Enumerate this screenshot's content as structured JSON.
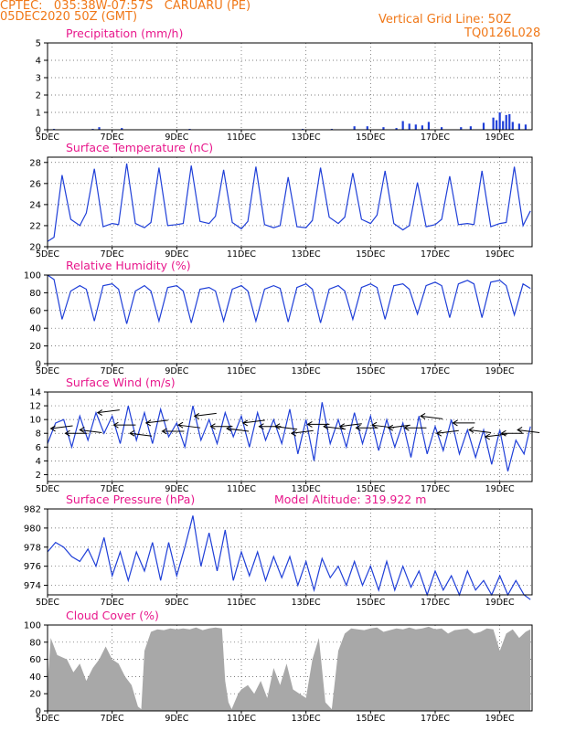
{
  "header": {
    "line1": "CPTEC:   035:38W-07:57S   CARUARU (PE)",
    "line2": "05DEC2020 50Z (GMT)",
    "grid_note": "Vertical Grid Line: 50Z",
    "code": "TQ0126L028"
  },
  "colors": {
    "header": "#f07818",
    "title": "#e8188c",
    "series": "#1f3fd8",
    "cloud": "#a8a8a8",
    "wind_arrow": "#000000"
  },
  "x_ticks": [
    "5DEC",
    "7DEC",
    "9DEC",
    "11DEC",
    "13DEC",
    "15DEC",
    "17DEC",
    "19DEC"
  ],
  "chart_data": [
    {
      "type": "bar",
      "title": "Precipitation (mm/h)",
      "ylim": [
        0,
        5
      ],
      "yticks": [
        0,
        1,
        2,
        3,
        4,
        5
      ],
      "x": [
        5.2,
        6.4,
        6.6,
        7.3,
        9.4,
        12.9,
        13.8,
        14.5,
        14.9,
        15.4,
        15.8,
        16.0,
        16.2,
        16.4,
        16.6,
        16.8,
        17.2,
        17.8,
        18.1,
        18.5,
        18.8,
        18.9,
        19.0,
        19.1,
        19.2,
        19.3,
        19.4,
        19.6,
        19.8
      ],
      "values": [
        0.05,
        0.05,
        0.15,
        0.1,
        0.05,
        0.05,
        0.05,
        0.2,
        0.2,
        0.15,
        0.1,
        0.5,
        0.35,
        0.3,
        0.25,
        0.45,
        0.15,
        0.15,
        0.2,
        0.4,
        0.7,
        0.55,
        1.0,
        0.5,
        0.85,
        0.9,
        0.45,
        0.35,
        0.3
      ]
    },
    {
      "type": "line",
      "title": "Surface Temperature (nC)",
      "ylim": [
        20,
        28.5
      ],
      "yticks": [
        20,
        22,
        24,
        26,
        28
      ],
      "x": [
        5.0,
        5.2,
        5.45,
        5.72,
        6.0,
        6.2,
        6.45,
        6.72,
        7.0,
        7.2,
        7.45,
        7.72,
        8.0,
        8.2,
        8.45,
        8.72,
        9.0,
        9.2,
        9.45,
        9.72,
        10.0,
        10.2,
        10.45,
        10.72,
        11.0,
        11.2,
        11.45,
        11.72,
        12.0,
        12.2,
        12.45,
        12.72,
        13.0,
        13.2,
        13.45,
        13.72,
        14.0,
        14.2,
        14.45,
        14.72,
        15.0,
        15.2,
        15.45,
        15.72,
        16.0,
        16.2,
        16.45,
        16.72,
        17.0,
        17.2,
        17.45,
        17.72,
        18.0,
        18.2,
        18.45,
        18.72,
        19.0,
        19.2,
        19.45,
        19.72,
        19.95
      ],
      "series": [
        {
          "values": [
            20.5,
            20.9,
            26.8,
            22.6,
            22.0,
            23.2,
            27.4,
            21.9,
            22.2,
            22.1,
            27.9,
            22.2,
            21.8,
            22.3,
            27.5,
            22.0,
            22.1,
            22.2,
            27.7,
            22.4,
            22.2,
            22.9,
            27.3,
            22.3,
            21.7,
            22.4,
            27.6,
            22.1,
            21.8,
            22.0,
            26.6,
            21.9,
            21.8,
            22.5,
            27.5,
            22.8,
            22.2,
            22.8,
            27.0,
            22.6,
            22.2,
            23.0,
            27.2,
            22.2,
            21.6,
            22.0,
            26.1,
            21.9,
            22.1,
            22.6,
            26.7,
            22.1,
            22.2,
            22.1,
            27.2,
            21.9,
            22.2,
            22.3,
            27.6,
            22.0,
            23.4
          ]
        }
      ]
    },
    {
      "type": "line",
      "title": "Relative Humidity (%)",
      "ylim": [
        0,
        100
      ],
      "yticks": [
        0,
        20,
        40,
        60,
        80,
        100
      ],
      "x": [
        5.0,
        5.2,
        5.45,
        5.72,
        6.0,
        6.2,
        6.45,
        6.72,
        7.0,
        7.2,
        7.45,
        7.72,
        8.0,
        8.2,
        8.45,
        8.72,
        9.0,
        9.2,
        9.45,
        9.72,
        10.0,
        10.2,
        10.45,
        10.72,
        11.0,
        11.2,
        11.45,
        11.72,
        12.0,
        12.2,
        12.45,
        12.72,
        13.0,
        13.2,
        13.45,
        13.72,
        14.0,
        14.2,
        14.45,
        14.72,
        15.0,
        15.2,
        15.45,
        15.72,
        16.0,
        16.2,
        16.45,
        16.72,
        17.0,
        17.2,
        17.45,
        17.72,
        18.0,
        18.2,
        18.45,
        18.72,
        19.0,
        19.2,
        19.45,
        19.72,
        19.95
      ],
      "series": [
        {
          "values": [
            100,
            95,
            50,
            82,
            88,
            84,
            48,
            88,
            90,
            84,
            45,
            82,
            88,
            82,
            48,
            86,
            88,
            82,
            46,
            84,
            86,
            82,
            48,
            84,
            88,
            82,
            48,
            84,
            88,
            85,
            47,
            86,
            90,
            84,
            46,
            84,
            88,
            82,
            50,
            86,
            90,
            86,
            50,
            88,
            90,
            84,
            56,
            88,
            92,
            88,
            52,
            90,
            94,
            90,
            52,
            92,
            94,
            88,
            55,
            90,
            85
          ]
        }
      ]
    },
    {
      "type": "line",
      "title": "Surface Wind (m/s)",
      "ylim": [
        1,
        14
      ],
      "yticks": [
        2,
        4,
        6,
        8,
        10,
        12,
        14
      ],
      "x": [
        5.0,
        5.25,
        5.5,
        5.75,
        6.0,
        6.25,
        6.5,
        6.75,
        7.0,
        7.25,
        7.5,
        7.75,
        8.0,
        8.25,
        8.5,
        8.75,
        9.0,
        9.25,
        9.5,
        9.75,
        10.0,
        10.25,
        10.5,
        10.75,
        11.0,
        11.25,
        11.5,
        11.75,
        12.0,
        12.25,
        12.5,
        12.75,
        13.0,
        13.25,
        13.5,
        13.75,
        14.0,
        14.25,
        14.5,
        14.75,
        15.0,
        15.25,
        15.5,
        15.75,
        16.0,
        16.25,
        16.5,
        16.75,
        17.0,
        17.25,
        17.5,
        17.75,
        18.0,
        18.25,
        18.5,
        18.75,
        19.0,
        19.25,
        19.5,
        19.75,
        19.95
      ],
      "series": [
        {
          "values": [
            6.5,
            9.5,
            10.0,
            6.0,
            10.5,
            7.0,
            11.0,
            8.0,
            10.5,
            6.5,
            12.0,
            7.0,
            11.0,
            6.5,
            11.5,
            7.5,
            9.5,
            6.0,
            12.0,
            7.0,
            10.0,
            6.5,
            11.0,
            7.5,
            10.5,
            6.0,
            11.0,
            7.0,
            10.0,
            6.5,
            11.5,
            5.0,
            10.0,
            4.0,
            12.5,
            6.5,
            10.0,
            6.0,
            11.0,
            6.5,
            10.5,
            5.5,
            10.0,
            6.0,
            9.5,
            4.5,
            10.5,
            5.0,
            9.0,
            5.5,
            10.0,
            5.0,
            8.5,
            4.5,
            8.5,
            3.5,
            8.5,
            2.5,
            7.0,
            5.0,
            9.0
          ]
        }
      ],
      "arrows": {
        "note": "wind direction vectors",
        "x": [
          5.1,
          5.55,
          6.0,
          6.55,
          7.05,
          7.55,
          8.05,
          8.55,
          9.05,
          9.55,
          10.05,
          10.55,
          11.05,
          11.55,
          12.05,
          12.55,
          13.05,
          13.55,
          14.05,
          14.55,
          15.05,
          15.55,
          16.05,
          16.55,
          17.05,
          17.55,
          18.05,
          18.55,
          19.05,
          19.55
        ],
        "y": [
          8.7,
          8.0,
          8.5,
          11.0,
          9.2,
          8.0,
          9.5,
          8.3,
          9.2,
          10.5,
          9.0,
          8.7,
          9.5,
          9.0,
          9.0,
          8.0,
          9.3,
          9.0,
          9.0,
          8.8,
          9.2,
          8.8,
          8.8,
          10.5,
          8.0,
          9.5,
          8.5,
          7.5,
          8.0,
          8.5
        ]
      }
    },
    {
      "type": "line",
      "title": "Surface Pressure (hPa)",
      "subtitle": "Model Altitude: 319.922 m",
      "ylim": [
        973,
        982
      ],
      "yticks": [
        974,
        976,
        978,
        980,
        982
      ],
      "x": [
        5.0,
        5.25,
        5.5,
        5.75,
        6.0,
        6.25,
        6.5,
        6.75,
        7.0,
        7.25,
        7.5,
        7.75,
        8.0,
        8.25,
        8.5,
        8.75,
        9.0,
        9.25,
        9.5,
        9.75,
        10.0,
        10.25,
        10.5,
        10.75,
        11.0,
        11.25,
        11.5,
        11.75,
        12.0,
        12.25,
        12.5,
        12.75,
        13.0,
        13.25,
        13.5,
        13.75,
        14.0,
        14.25,
        14.5,
        14.75,
        15.0,
        15.25,
        15.5,
        15.75,
        16.0,
        16.25,
        16.5,
        16.75,
        17.0,
        17.25,
        17.5,
        17.75,
        18.0,
        18.25,
        18.5,
        18.75,
        19.0,
        19.25,
        19.5,
        19.75,
        19.95
      ],
      "series": [
        {
          "values": [
            977.5,
            978.5,
            978.0,
            977.0,
            976.5,
            977.8,
            976.0,
            979.0,
            975.0,
            977.5,
            974.5,
            977.5,
            975.5,
            978.5,
            974.5,
            978.5,
            975.0,
            978.0,
            981.3,
            976.0,
            979.5,
            975.5,
            979.8,
            974.5,
            977.5,
            975.0,
            977.5,
            974.5,
            977.0,
            974.8,
            977.0,
            974.0,
            976.5,
            973.5,
            976.8,
            974.8,
            976.0,
            974.0,
            976.5,
            974.0,
            976.0,
            973.5,
            976.5,
            973.5,
            976.0,
            973.8,
            975.5,
            973.0,
            975.5,
            973.5,
            975.0,
            973.0,
            975.5,
            973.5,
            974.5,
            973.0,
            975.0,
            973.0,
            974.5,
            973.0,
            972.5
          ]
        }
      ]
    },
    {
      "type": "area",
      "title": "Cloud Cover (%)",
      "ylim": [
        0,
        100
      ],
      "yticks": [
        0,
        20,
        40,
        60,
        80,
        100
      ],
      "x": [
        5.0,
        5.1,
        5.3,
        5.6,
        5.8,
        6.0,
        6.2,
        6.4,
        6.6,
        6.8,
        7.0,
        7.2,
        7.4,
        7.6,
        7.8,
        7.9,
        8.0,
        8.2,
        8.4,
        8.6,
        8.8,
        9.0,
        9.2,
        9.4,
        9.6,
        9.8,
        10.0,
        10.2,
        10.4,
        10.5,
        10.6,
        10.7,
        10.9,
        11.0,
        11.2,
        11.4,
        11.6,
        11.8,
        12.0,
        12.2,
        12.4,
        12.6,
        12.8,
        13.0,
        13.2,
        13.4,
        13.6,
        13.8,
        14.0,
        14.2,
        14.4,
        14.6,
        14.8,
        15.0,
        15.2,
        15.4,
        15.6,
        15.8,
        16.0,
        16.2,
        16.4,
        16.6,
        16.8,
        17.0,
        17.2,
        17.4,
        17.6,
        17.8,
        18.0,
        18.2,
        18.4,
        18.6,
        18.8,
        19.0,
        19.2,
        19.4,
        19.6,
        19.8,
        19.95
      ],
      "values": [
        30,
        85,
        65,
        60,
        45,
        55,
        35,
        50,
        60,
        75,
        60,
        55,
        40,
        30,
        5,
        2,
        70,
        92,
        95,
        94,
        96,
        95,
        96,
        95,
        97,
        94,
        96,
        97,
        96,
        35,
        10,
        2,
        20,
        25,
        30,
        20,
        35,
        15,
        50,
        30,
        55,
        25,
        20,
        15,
        60,
        85,
        10,
        2,
        70,
        90,
        96,
        95,
        94,
        96,
        97,
        92,
        94,
        96,
        95,
        97,
        95,
        96,
        98,
        95,
        96,
        90,
        94,
        95,
        96,
        90,
        92,
        96,
        95,
        70,
        90,
        95,
        85,
        92,
        95
      ]
    }
  ]
}
